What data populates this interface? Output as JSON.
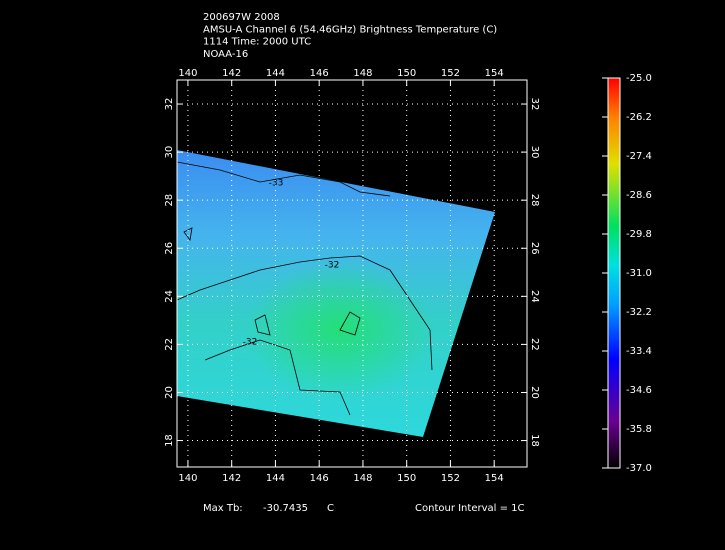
{
  "header": {
    "lines": [
      "200697W 2008",
      "AMSU-A Channel 6 (54.46GHz) Brightness Temperature (C)",
      "1114 Time: 2000 UTC",
      "NOAA-16"
    ]
  },
  "map": {
    "xlim": [
      139.5,
      155.5
    ],
    "ylim": [
      16.9,
      33.0
    ],
    "xticks": [
      140,
      142,
      144,
      146,
      148,
      150,
      152,
      154
    ],
    "yticks": [
      18,
      20,
      22,
      24,
      26,
      28,
      30,
      32
    ],
    "grid": true,
    "contour_labels": [
      "-33",
      "-32",
      "-32"
    ]
  },
  "colorbar": {
    "range": [
      -37.0,
      -25.0
    ],
    "ticks": [
      {
        "value": -25.0,
        "label": "-25.0"
      },
      {
        "value": -26.2,
        "label": "-26.2"
      },
      {
        "value": -27.4,
        "label": "-27.4"
      },
      {
        "value": -28.6,
        "label": "-28.6"
      },
      {
        "value": -29.8,
        "label": "-29.8"
      },
      {
        "value": -31.0,
        "label": "-31.0"
      },
      {
        "value": -32.2,
        "label": "-32.2"
      },
      {
        "value": -33.4,
        "label": "-33.4"
      },
      {
        "value": -34.6,
        "label": "-34.6"
      },
      {
        "value": -35.8,
        "label": "-35.8"
      },
      {
        "value": -37.0,
        "label": "-37.0"
      }
    ]
  },
  "footer": {
    "max_label": "Max Tb:",
    "max_value": -30.7435,
    "unit": "C",
    "contour_interval": "Contour Interval = 1C"
  }
}
